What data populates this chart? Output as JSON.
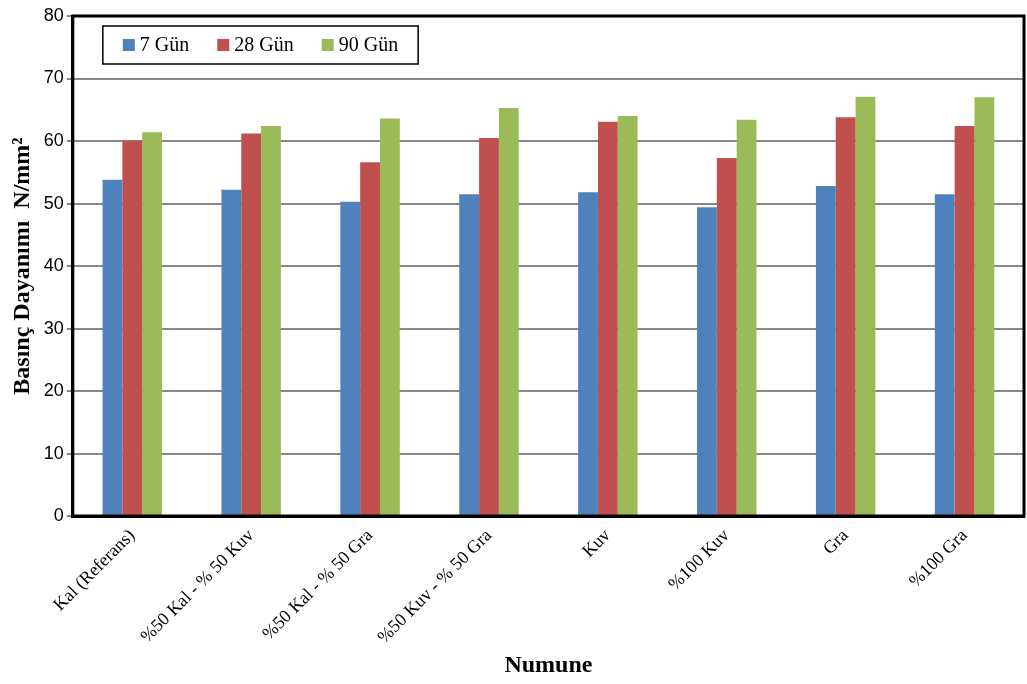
{
  "chart_data": {
    "type": "bar",
    "xlabel": "Numune",
    "ylabel": "Basınç Dayanımı  N/mm²",
    "categories": [
      "Kal (Referans)",
      "%50 Kal - % 50 Kuv",
      "%50 Kal - % 50 Gra",
      "%50 Kuv - % 50 Gra",
      "Kuv",
      "%100 Kuv",
      "Gra",
      "%100 Gra"
    ],
    "series": [
      {
        "name": "7 Gün",
        "color": "#4f81bd",
        "values": [
          53.8,
          52.2,
          50.3,
          51.5,
          51.8,
          49.4,
          52.8,
          51.5
        ]
      },
      {
        "name": "28 Gün",
        "color": "#c0504d",
        "values": [
          60.1,
          61.2,
          56.6,
          60.5,
          63.1,
          57.3,
          63.8,
          62.4
        ]
      },
      {
        "name": "90 Gün",
        "color": "#9bbb59",
        "values": [
          61.4,
          62.4,
          63.6,
          65.3,
          64.0,
          63.4,
          67.1,
          67.0
        ]
      }
    ],
    "ylim": [
      0,
      80
    ],
    "yticks": [
      0,
      10,
      20,
      30,
      40,
      50,
      60,
      70,
      80
    ],
    "grid": "y",
    "legend": "top left"
  }
}
